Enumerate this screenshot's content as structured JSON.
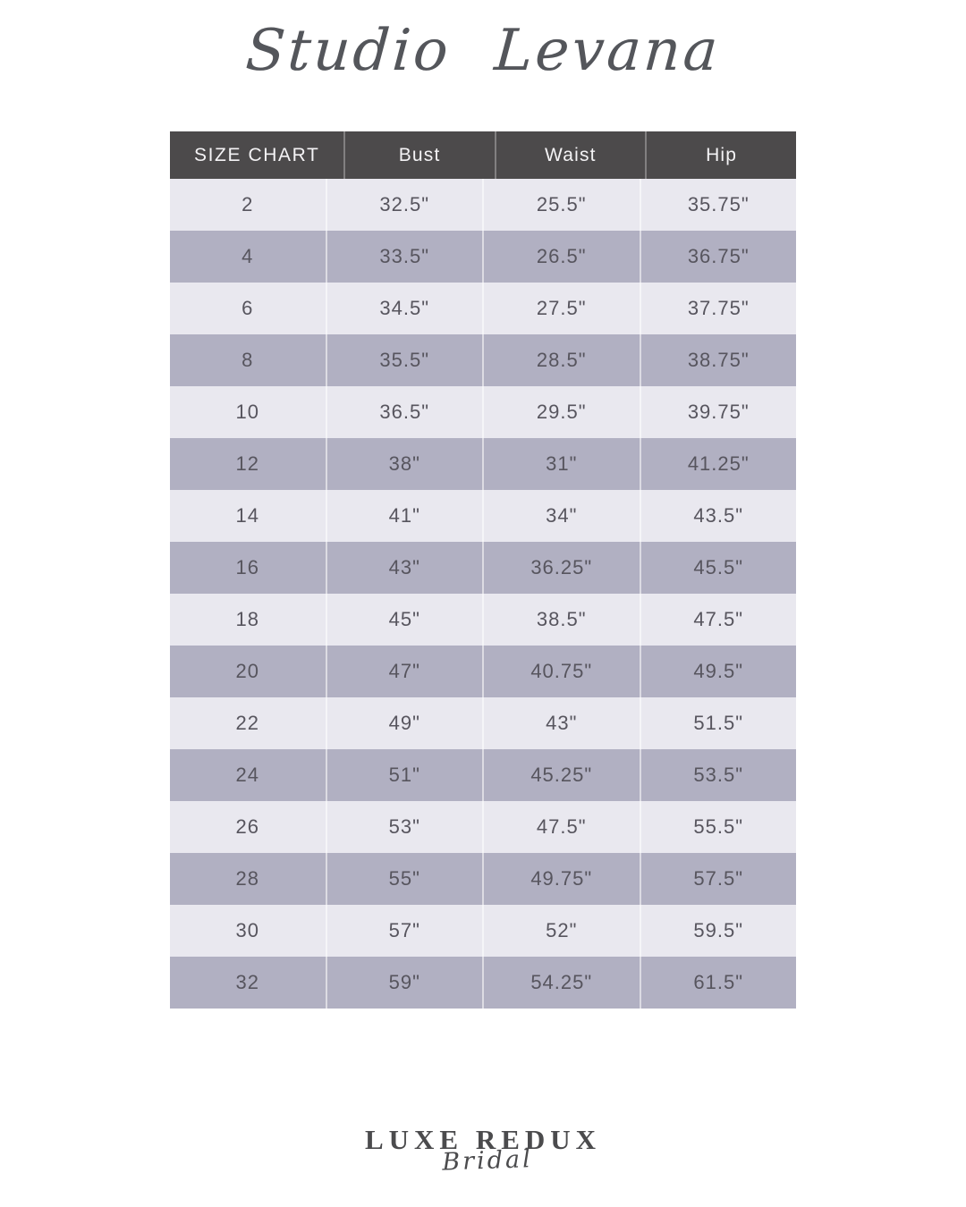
{
  "header": {
    "brand": "Studio Levana"
  },
  "chart_data": {
    "type": "table",
    "title": "SIZE CHART",
    "columns": [
      "SIZE CHART",
      "Bust",
      "Waist",
      "Hip"
    ],
    "units": "inches",
    "rows": [
      [
        "2",
        "32.5\"",
        "25.5\"",
        "35.75\""
      ],
      [
        "4",
        "33.5\"",
        "26.5\"",
        "36.75\""
      ],
      [
        "6",
        "34.5\"",
        "27.5\"",
        "37.75\""
      ],
      [
        "8",
        "35.5\"",
        "28.5\"",
        "38.75\""
      ],
      [
        "10",
        "36.5\"",
        "29.5\"",
        "39.75\""
      ],
      [
        "12",
        "38\"",
        "31\"",
        "41.25\""
      ],
      [
        "14",
        "41\"",
        "34\"",
        "43.5\""
      ],
      [
        "16",
        "43\"",
        "36.25\"",
        "45.5\""
      ],
      [
        "18",
        "45\"",
        "38.5\"",
        "47.5\""
      ],
      [
        "20",
        "47\"",
        "40.75\"",
        "49.5\""
      ],
      [
        "22",
        "49\"",
        "43\"",
        "51.5\""
      ],
      [
        "24",
        "51\"",
        "45.25\"",
        "53.5\""
      ],
      [
        "26",
        "53\"",
        "47.5\"",
        "55.5\""
      ],
      [
        "28",
        "55\"",
        "49.75\"",
        "57.5\""
      ],
      [
        "30",
        "57\"",
        "52\"",
        "59.5\""
      ],
      [
        "32",
        "59\"",
        "54.25\"",
        "61.5\""
      ]
    ],
    "row_striping_order": [
      "light",
      "dark"
    ],
    "legend_position": "none",
    "grid": "column-dividers"
  },
  "footer": {
    "logo_primary": "LUXE REDUX",
    "logo_secondary": "Bridal"
  },
  "colors": {
    "page_bg": "#ffffff",
    "header_bg": "#4c4a4b",
    "header_text": "#f4f3f5",
    "row_light_bg": "#e9e8ef",
    "row_dark_bg": "#b1b0c2",
    "row_text": "#57555e",
    "brand_text": "#54565b",
    "logo_text": "#4b4b4d"
  }
}
